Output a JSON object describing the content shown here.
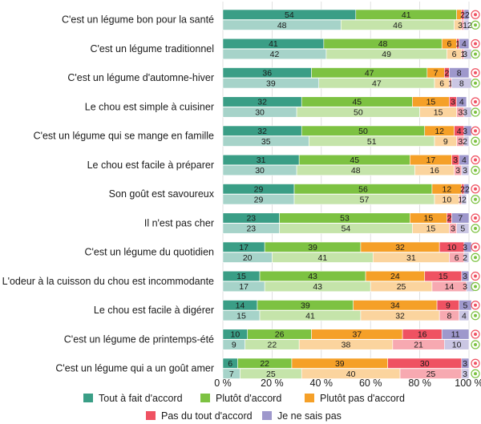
{
  "chart_data": {
    "type": "bar",
    "orientation": "horizontal",
    "stacked": true,
    "xlim": [
      0,
      100
    ],
    "ticks": [
      "0 %",
      "20 %",
      "40 %",
      "60 %",
      "80 %",
      "100 %"
    ],
    "categories": [
      "C'est un légume bon pour la santé",
      "C'est un légume traditionnel",
      "C'est un légume d'automne-hiver",
      "Le chou est simple à cuisiner",
      "C'est un légume qui se mange en famille",
      "Le chou est facile à préparer",
      "Son goût est savoureux",
      "Il n'est pas cher",
      "C'est un légume du quotidien",
      "L'odeur à la cuisson du chou est incommodante",
      "Le chou est facile à digérer",
      "C'est un légume de printemps-été",
      "C'est un légume qui a un goût amer"
    ],
    "legend": [
      {
        "name": "Tout à fait d'accord",
        "color": "#3a9e86"
      },
      {
        "name": "Plutôt d'accord",
        "color": "#7dc242"
      },
      {
        "name": "Plutôt pas d'accord",
        "color": "#f5a028"
      },
      {
        "name": "Pas du tout d'accord",
        "color": "#ef5262"
      },
      {
        "name": "Je ne sais pas",
        "color": "#9e98cc"
      }
    ],
    "top_rows": [
      [
        54,
        41,
        2,
        1,
        2
      ],
      [
        41,
        48,
        6,
        1,
        4
      ],
      [
        36,
        47,
        7,
        2,
        8
      ],
      [
        32,
        45,
        15,
        3,
        4
      ],
      [
        32,
        50,
        12,
        4,
        3
      ],
      [
        31,
        45,
        17,
        3,
        4
      ],
      [
        29,
        56,
        12,
        1,
        2
      ],
      [
        23,
        53,
        15,
        2,
        7
      ],
      [
        17,
        39,
        32,
        10,
        3
      ],
      [
        15,
        43,
        24,
        15,
        3
      ],
      [
        14,
        39,
        34,
        9,
        5
      ],
      [
        10,
        26,
        37,
        16,
        11
      ],
      [
        6,
        22,
        39,
        30,
        3
      ]
    ],
    "bottom_rows": [
      [
        48,
        46,
        3,
        1,
        2
      ],
      [
        42,
        49,
        6,
        1,
        3
      ],
      [
        39,
        47,
        6,
        1,
        8
      ],
      [
        30,
        50,
        15,
        3,
        3
      ],
      [
        35,
        51,
        9,
        3,
        2
      ],
      [
        30,
        48,
        16,
        3,
        3
      ],
      [
        29,
        57,
        10,
        1,
        2
      ],
      [
        23,
        54,
        15,
        3,
        5
      ],
      [
        20,
        41,
        31,
        6,
        2
      ],
      [
        17,
        43,
        25,
        14,
        3
      ],
      [
        15,
        41,
        32,
        8,
        4
      ],
      [
        9,
        22,
        38,
        21,
        10
      ],
      [
        7,
        25,
        40,
        25,
        3
      ]
    ],
    "top_labels": [
      [
        "54",
        "41",
        "",
        "",
        "22"
      ],
      [
        "41",
        "48",
        "6",
        "1",
        "4"
      ],
      [
        "36",
        "47",
        "7",
        "2",
        "8"
      ],
      [
        "32",
        "45",
        "15",
        "3",
        "4"
      ],
      [
        "32",
        "50",
        "12",
        "4",
        "3"
      ],
      [
        "31",
        "45",
        "17",
        "3",
        "4"
      ],
      [
        "29",
        "56",
        "12",
        "",
        "22"
      ],
      [
        "23",
        "53",
        "15",
        "2",
        "7"
      ],
      [
        "17",
        "39",
        "32",
        "10",
        "3"
      ],
      [
        "15",
        "43",
        "24",
        "15",
        "3"
      ],
      [
        "14",
        "39",
        "34",
        "9",
        "5"
      ],
      [
        "10",
        "26",
        "37",
        "16",
        "11"
      ],
      [
        "6",
        "22",
        "39",
        "30",
        "3"
      ]
    ],
    "bottom_labels": [
      [
        "48",
        "46",
        "",
        "",
        "312"
      ],
      [
        "42",
        "49",
        "6",
        "1",
        "3"
      ],
      [
        "39",
        "47",
        "6",
        "1",
        "8"
      ],
      [
        "30",
        "50",
        "15",
        "3",
        "3"
      ],
      [
        "35",
        "51",
        "9",
        "3",
        "2"
      ],
      [
        "30",
        "48",
        "16",
        "3",
        "3"
      ],
      [
        "29",
        "57",
        "10",
        "1",
        "2"
      ],
      [
        "23",
        "54",
        "15",
        "3",
        "5"
      ],
      [
        "20",
        "41",
        "31",
        "6",
        "2"
      ],
      [
        "17",
        "43",
        "25",
        "14",
        "3"
      ],
      [
        "15",
        "41",
        "32",
        "8",
        "4"
      ],
      [
        "9",
        "22",
        "38",
        "21",
        "10"
      ],
      [
        "7",
        "25",
        "40",
        "25",
        "3"
      ]
    ]
  }
}
